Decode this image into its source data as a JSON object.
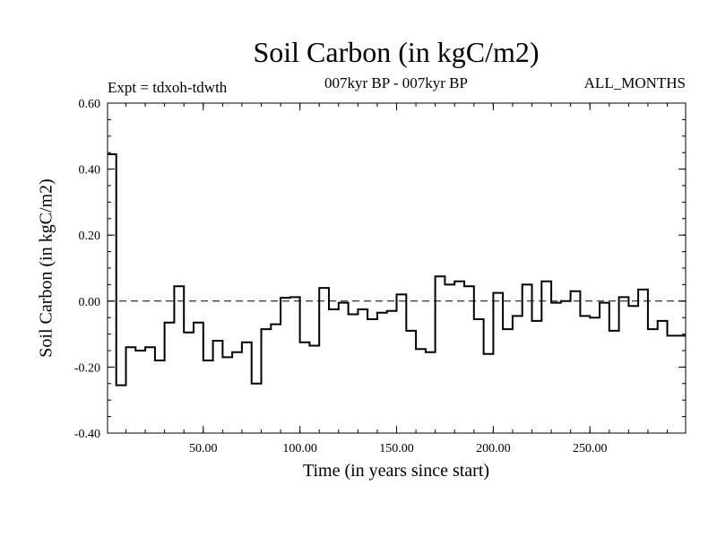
{
  "chart_data": {
    "type": "line",
    "title": "Soil Carbon (in kgC/m2)",
    "subtitle_left": "Expt = tdxoh-tdwth",
    "subtitle_center": "007kyr BP - 007kyr BP",
    "subtitle_right": "ALL_MONTHS",
    "xlabel": "Time (in years since start)",
    "ylabel": "Soil Carbon (in kgC/m2)",
    "xlim": [
      0.5,
      299.5
    ],
    "ylim": [
      -0.4,
      0.6
    ],
    "xticks": [
      50,
      100,
      150,
      200,
      250
    ],
    "xtick_labels": [
      "50.00",
      "100.00",
      "150.00",
      "200.00",
      "250.00"
    ],
    "yticks": [
      -0.4,
      -0.2,
      0.0,
      0.2,
      0.4,
      0.6
    ],
    "ytick_labels": [
      "-0.40",
      "-0.20",
      "0.00",
      "0.20",
      "0.40",
      "0.60"
    ],
    "reference_line": 0.0,
    "step_width": 5,
    "series": [
      {
        "x": [
          2.5,
          7.5,
          12.5,
          17.5,
          22.5,
          27.5,
          32.5,
          37.5,
          42.5,
          47.5,
          52.5,
          57.5,
          62.5,
          67.5,
          72.5,
          77.5,
          82.5,
          87.5,
          92.5,
          97.5,
          102.5,
          107.5,
          112.5,
          117.5,
          122.5,
          127.5,
          132.5,
          137.5,
          142.5,
          147.5,
          152.5,
          157.5,
          162.5,
          167.5,
          172.5,
          177.5,
          182.5,
          187.5,
          192.5,
          197.5,
          202.5,
          207.5,
          212.5,
          217.5,
          222.5,
          227.5,
          232.5,
          237.5,
          242.5,
          247.5,
          252.5,
          257.5,
          262.5,
          267.5,
          272.5,
          277.5,
          282.5,
          287.5,
          292.5,
          297.5
        ],
        "y": [
          0.445,
          -0.255,
          -0.14,
          -0.15,
          -0.14,
          -0.18,
          -0.065,
          0.045,
          -0.095,
          -0.065,
          -0.18,
          -0.12,
          -0.17,
          -0.155,
          -0.125,
          -0.25,
          -0.085,
          -0.07,
          0.01,
          0.012,
          -0.125,
          -0.135,
          0.04,
          -0.025,
          -0.005,
          -0.04,
          -0.025,
          -0.055,
          -0.035,
          -0.03,
          0.02,
          -0.09,
          -0.145,
          -0.155,
          0.075,
          0.05,
          0.06,
          0.045,
          -0.055,
          -0.16,
          0.025,
          -0.085,
          -0.045,
          0.05,
          -0.06,
          0.06,
          -0.005,
          0.0,
          0.03,
          -0.045,
          -0.05,
          -0.005,
          -0.09,
          0.012,
          -0.015,
          0.035,
          -0.085,
          -0.06,
          -0.105,
          -0.105
        ]
      }
    ]
  }
}
